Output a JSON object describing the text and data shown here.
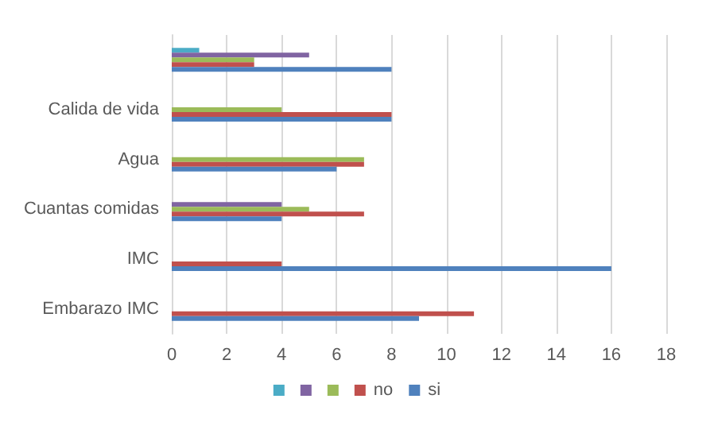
{
  "chart_data": {
    "type": "bar",
    "orientation": "horizontal",
    "categories": [
      null,
      "Calida de vida",
      "Agua",
      "Cuantas comidas",
      "IMC",
      "Embarazo IMC"
    ],
    "series": [
      {
        "color": "#4bacc6",
        "values": [
          1,
          null,
          null,
          null,
          null,
          null
        ]
      },
      {
        "color": "#8064a2",
        "values": [
          5,
          null,
          null,
          4,
          null,
          null
        ]
      },
      {
        "color": "#9bbb59",
        "values": [
          3,
          4,
          7,
          5,
          null,
          null
        ]
      },
      {
        "name": "no",
        "color": "#c0504d",
        "values": [
          3,
          8,
          7,
          7,
          4,
          11
        ]
      },
      {
        "name": "si",
        "color": "#4f81bd",
        "values": [
          8,
          8,
          6,
          4,
          16,
          9
        ]
      }
    ],
    "xlim": [
      0,
      18
    ],
    "xticks": [
      0,
      2,
      4,
      6,
      8,
      10,
      12,
      14,
      16,
      18
    ],
    "grid": "x",
    "legend": "bottom"
  }
}
